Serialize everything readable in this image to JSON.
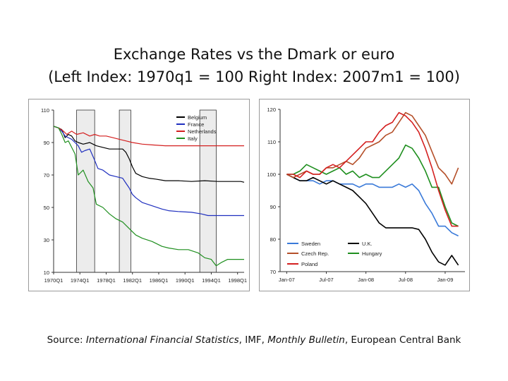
{
  "title": {
    "line1": "Exchange Rates vs the Dmark or euro",
    "line2": "(Left Index: 1970q1 = 100    Right Index: 2007m1 = 100)"
  },
  "source": {
    "prefix": "Source: ",
    "ifs": "International Financial Statistics",
    "sep1": ", IMF, ",
    "bulletin": "Monthly Bulletin",
    "sep2": ", European Central Bank"
  },
  "chart_data": [
    {
      "type": "line",
      "xlabel": "",
      "ylabel": "",
      "x_ticks": [
        "1970Q1",
        "1974Q1",
        "1978Q1",
        "1982Q1",
        "1986Q1",
        "1990Q1",
        "1994Q1",
        "1998Q1"
      ],
      "x_tick_values": [
        1970,
        1974,
        1978,
        1982,
        1986,
        1990,
        1994,
        1998
      ],
      "xlim": [
        1970,
        1999
      ],
      "ylim": [
        10,
        110
      ],
      "y_ticks": [
        10,
        30,
        50,
        70,
        90,
        110
      ],
      "shaded_periods": [
        [
          1973.5,
          1976.25
        ],
        [
          1980,
          1981.75
        ],
        [
          1992.25,
          1994.75
        ]
      ],
      "legend_position": "top-right",
      "series": [
        {
          "name": "Belgium",
          "color": "#000000",
          "points": [
            [
              1970,
              100
            ],
            [
              1970.75,
              99
            ],
            [
              1971.25,
              98
            ],
            [
              1971.75,
              93
            ],
            [
              1972.25,
              95
            ],
            [
              1972.75,
              94
            ],
            [
              1973.25,
              91
            ],
            [
              1973.75,
              90
            ],
            [
              1974.5,
              89
            ],
            [
              1975.5,
              90
            ],
            [
              1976.5,
              88
            ],
            [
              1977.5,
              87
            ],
            [
              1978.5,
              86
            ],
            [
              1979.5,
              86
            ],
            [
              1980.5,
              86
            ],
            [
              1981,
              84
            ],
            [
              1981.5,
              80
            ],
            [
              1982,
              75
            ],
            [
              1982.5,
              71
            ],
            [
              1983.5,
              69
            ],
            [
              1984.5,
              68
            ],
            [
              1985.5,
              67.5
            ],
            [
              1987,
              66.5
            ],
            [
              1989,
              66.5
            ],
            [
              1991,
              66
            ],
            [
              1993,
              66.5
            ],
            [
              1995,
              66
            ],
            [
              1997,
              66
            ],
            [
              1998.5,
              66
            ],
            [
              1999,
              65.5
            ]
          ]
        },
        {
          "name": "France",
          "color": "#1f2fbf",
          "points": [
            [
              1970,
              100
            ],
            [
              1970.75,
              99
            ],
            [
              1971.25,
              97
            ],
            [
              1971.75,
              94
            ],
            [
              1972.25,
              93
            ],
            [
              1972.75,
              92
            ],
            [
              1973.25,
              90
            ],
            [
              1973.75,
              88
            ],
            [
              1974.25,
              84
            ],
            [
              1974.75,
              85
            ],
            [
              1975.5,
              86
            ],
            [
              1976.25,
              79
            ],
            [
              1976.75,
              74
            ],
            [
              1977.5,
              73
            ],
            [
              1978.5,
              70
            ],
            [
              1979.5,
              69
            ],
            [
              1980.5,
              68
            ],
            [
              1981,
              65
            ],
            [
              1981.5,
              62
            ],
            [
              1982,
              58
            ],
            [
              1982.5,
              56
            ],
            [
              1983.5,
              53
            ],
            [
              1985,
              51
            ],
            [
              1986.5,
              49
            ],
            [
              1987.5,
              48
            ],
            [
              1989,
              47.5
            ],
            [
              1991,
              47
            ],
            [
              1992.5,
              46
            ],
            [
              1993.5,
              45
            ],
            [
              1995,
              45
            ],
            [
              1997,
              45
            ],
            [
              1999,
              45
            ]
          ]
        },
        {
          "name": "Netherlands",
          "color": "#d42020",
          "points": [
            [
              1970,
              100
            ],
            [
              1970.75,
              99
            ],
            [
              1971.5,
              97
            ],
            [
              1972,
              95
            ],
            [
              1972.75,
              97
            ],
            [
              1973.5,
              95
            ],
            [
              1974.5,
              96
            ],
            [
              1975.5,
              94
            ],
            [
              1976.25,
              95
            ],
            [
              1977,
              94
            ],
            [
              1978,
              94
            ],
            [
              1979,
              93
            ],
            [
              1980,
              92
            ],
            [
              1981,
              91
            ],
            [
              1982,
              90
            ],
            [
              1983.5,
              89
            ],
            [
              1985,
              88.5
            ],
            [
              1987,
              88
            ],
            [
              1990,
              88
            ],
            [
              1993,
              88
            ],
            [
              1996,
              88
            ],
            [
              1999,
              88
            ]
          ]
        },
        {
          "name": "Italy",
          "color": "#1f8f1f",
          "points": [
            [
              1970,
              100
            ],
            [
              1970.75,
              99
            ],
            [
              1971.25,
              95
            ],
            [
              1971.75,
              90
            ],
            [
              1972.25,
              91
            ],
            [
              1972.75,
              87
            ],
            [
              1973.25,
              83
            ],
            [
              1973.75,
              70
            ],
            [
              1974.5,
              73
            ],
            [
              1975.25,
              66
            ],
            [
              1976,
              62
            ],
            [
              1976.5,
              52
            ],
            [
              1977.5,
              50
            ],
            [
              1978.5,
              46
            ],
            [
              1979.5,
              43
            ],
            [
              1980.5,
              41
            ],
            [
              1981.5,
              37
            ],
            [
              1982.5,
              33
            ],
            [
              1983.5,
              31
            ],
            [
              1985,
              29
            ],
            [
              1986.5,
              26
            ],
            [
              1987.5,
              25
            ],
            [
              1989,
              24
            ],
            [
              1990.5,
              24
            ],
            [
              1992,
              22
            ],
            [
              1993,
              19
            ],
            [
              1994,
              18
            ],
            [
              1994.75,
              14
            ],
            [
              1995.5,
              16
            ],
            [
              1996.5,
              18
            ],
            [
              1998,
              18
            ],
            [
              1999,
              18
            ]
          ]
        }
      ]
    },
    {
      "type": "line",
      "xlabel": "",
      "ylabel": "",
      "x_ticks": [
        "Jan-07",
        "Jul-07",
        "Jan-08",
        "Jul-08",
        "Jan-09"
      ],
      "x_tick_values": [
        0,
        6,
        12,
        18,
        24
      ],
      "xlim": [
        -1,
        27
      ],
      "ylim": [
        70,
        120
      ],
      "y_ticks": [
        70,
        80,
        90,
        100,
        110,
        120
      ],
      "legend_position": "bottom",
      "series": [
        {
          "name": "Sweden",
          "color": "#3a7ad9",
          "points": [
            [
              0,
              100
            ],
            [
              1,
              99
            ],
            [
              2,
              98
            ],
            [
              3,
              98
            ],
            [
              4,
              98
            ],
            [
              5,
              97
            ],
            [
              6,
              98
            ],
            [
              7,
              98
            ],
            [
              8,
              97
            ],
            [
              9,
              97
            ],
            [
              10,
              97
            ],
            [
              11,
              96
            ],
            [
              12,
              97
            ],
            [
              13,
              97
            ],
            [
              14,
              96
            ],
            [
              15,
              96
            ],
            [
              16,
              96
            ],
            [
              17,
              97
            ],
            [
              18,
              96
            ],
            [
              19,
              97
            ],
            [
              20,
              95
            ],
            [
              21,
              91
            ],
            [
              22,
              88
            ],
            [
              23,
              84
            ],
            [
              24,
              84
            ],
            [
              25,
              82
            ],
            [
              26,
              81
            ]
          ]
        },
        {
          "name": "U.K.",
          "color": "#000000",
          "points": [
            [
              0,
              100
            ],
            [
              1,
              99
            ],
            [
              2,
              98
            ],
            [
              3,
              98
            ],
            [
              4,
              99
            ],
            [
              5,
              98
            ],
            [
              6,
              97
            ],
            [
              7,
              98
            ],
            [
              8,
              97
            ],
            [
              9,
              96
            ],
            [
              10,
              95
            ],
            [
              11,
              93
            ],
            [
              12,
              91
            ],
            [
              13,
              88
            ],
            [
              14,
              85
            ],
            [
              15,
              83.5
            ],
            [
              16,
              83.5
            ],
            [
              17,
              83.5
            ],
            [
              18,
              83.5
            ],
            [
              19,
              83.5
            ],
            [
              20,
              83
            ],
            [
              21,
              80
            ],
            [
              22,
              76
            ],
            [
              23,
              73
            ],
            [
              24,
              72
            ],
            [
              25,
              75
            ],
            [
              26,
              72
            ]
          ]
        },
        {
          "name": "Czech Rep.",
          "color": "#b5502a",
          "points": [
            [
              0,
              100
            ],
            [
              1,
              99
            ],
            [
              2,
              100
            ],
            [
              3,
              101
            ],
            [
              4,
              100
            ],
            [
              5,
              100
            ],
            [
              6,
              102
            ],
            [
              7,
              102
            ],
            [
              8,
              103
            ],
            [
              9,
              104
            ],
            [
              10,
              103
            ],
            [
              11,
              105
            ],
            [
              12,
              108
            ],
            [
              13,
              109
            ],
            [
              14,
              110
            ],
            [
              15,
              112
            ],
            [
              16,
              113
            ],
            [
              17,
              116
            ],
            [
              18,
              119
            ],
            [
              19,
              118
            ],
            [
              20,
              115
            ],
            [
              21,
              112
            ],
            [
              22,
              107
            ],
            [
              23,
              102
            ],
            [
              24,
              100
            ],
            [
              25,
              97
            ],
            [
              26,
              102
            ]
          ]
        },
        {
          "name": "Hungary",
          "color": "#1f8f1f",
          "points": [
            [
              0,
              100
            ],
            [
              1,
              100
            ],
            [
              2,
              101
            ],
            [
              3,
              103
            ],
            [
              4,
              102
            ],
            [
              5,
              101
            ],
            [
              6,
              100
            ],
            [
              7,
              101
            ],
            [
              8,
              102
            ],
            [
              9,
              100
            ],
            [
              10,
              101
            ],
            [
              11,
              99
            ],
            [
              12,
              100
            ],
            [
              13,
              99
            ],
            [
              14,
              99
            ],
            [
              15,
              101
            ],
            [
              16,
              103
            ],
            [
              17,
              105
            ],
            [
              18,
              109
            ],
            [
              19,
              108
            ],
            [
              20,
              105
            ],
            [
              21,
              101
            ],
            [
              22,
              96
            ],
            [
              23,
              96
            ],
            [
              24,
              90
            ],
            [
              25,
              85
            ],
            [
              26,
              84
            ]
          ]
        },
        {
          "name": "Poland",
          "color": "#d42020",
          "points": [
            [
              0,
              100
            ],
            [
              1,
              100
            ],
            [
              2,
              99
            ],
            [
              3,
              101
            ],
            [
              4,
              100
            ],
            [
              5,
              100
            ],
            [
              6,
              102
            ],
            [
              7,
              103
            ],
            [
              8,
              102
            ],
            [
              9,
              104
            ],
            [
              10,
              106
            ],
            [
              11,
              108
            ],
            [
              12,
              110
            ],
            [
              13,
              110
            ],
            [
              14,
              113
            ],
            [
              15,
              115
            ],
            [
              16,
              116
            ],
            [
              17,
              119
            ],
            [
              18,
              118
            ],
            [
              19,
              116
            ],
            [
              20,
              113
            ],
            [
              21,
              108
            ],
            [
              22,
              102
            ],
            [
              23,
              95
            ],
            [
              24,
              89
            ],
            [
              25,
              84
            ],
            [
              26,
              84
            ]
          ]
        }
      ]
    }
  ]
}
